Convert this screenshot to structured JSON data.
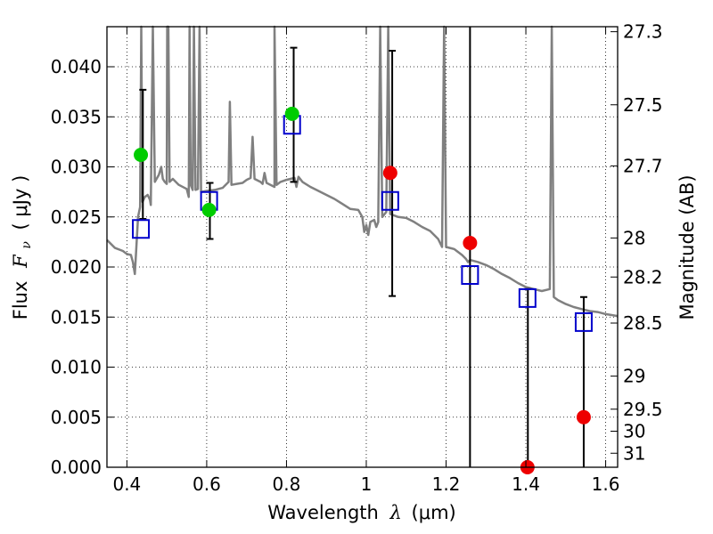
{
  "chart_data": {
    "type": "scatter",
    "title": "",
    "xlabel": {
      "prefix": "Wavelength",
      "symbol": "λ",
      "unit": "(μm)"
    },
    "ylabel": {
      "prefix": "Flux",
      "symbol": "F",
      "subscript": "ν",
      "unit": "( μJy )"
    },
    "y2label": "Magnitude (AB)",
    "xlim": [
      0.35,
      1.63
    ],
    "ylim": [
      0.0,
      0.044
    ],
    "x_ticks": [
      0.4,
      0.6,
      0.8,
      1.0,
      1.2,
      1.4,
      1.6
    ],
    "x_tick_labels": [
      "0.4",
      "0.6",
      "0.8",
      "1",
      "1.2",
      "1.4",
      "1.6"
    ],
    "y_ticks": [
      0.0,
      0.005,
      0.01,
      0.015,
      0.02,
      0.025,
      0.03,
      0.035,
      0.04
    ],
    "y_tick_labels": [
      "0.000",
      "0.005",
      "0.010",
      "0.015",
      "0.020",
      "0.025",
      "0.030",
      "0.035",
      "0.040"
    ],
    "y2_ticks": [
      {
        "label": "27.3",
        "flux": 0.0435
      },
      {
        "label": "27.5",
        "flux": 0.0362
      },
      {
        "label": "27.7",
        "flux": 0.0301
      },
      {
        "label": "28",
        "flux": 0.0229
      },
      {
        "label": "28.2",
        "flux": 0.019
      },
      {
        "label": "28.5",
        "flux": 0.0144
      },
      {
        "label": "29",
        "flux": 0.0091
      },
      {
        "label": "29.5",
        "flux": 0.0058
      },
      {
        "label": "30",
        "flux": 0.0036
      },
      {
        "label": "31",
        "flux": 0.0014
      }
    ],
    "grid": true,
    "colors": {
      "model": "#808080",
      "box": "#0000cc",
      "green": "#00cc00",
      "red": "#ee0000",
      "errorbar": "#000000"
    },
    "series": [
      {
        "marker": "square",
        "color": "#0000cc",
        "points": [
          {
            "x": 0.435,
            "y": 0.0238
          },
          {
            "x": 0.606,
            "y": 0.0266
          },
          {
            "x": 0.814,
            "y": 0.0342
          },
          {
            "x": 1.06,
            "y": 0.0266
          },
          {
            "x": 1.26,
            "y": 0.0192
          },
          {
            "x": 1.404,
            "y": 0.0169
          },
          {
            "x": 1.545,
            "y": 0.0145
          }
        ]
      },
      {
        "marker": "circle",
        "color": "#00cc00",
        "points": [
          {
            "x": 0.435,
            "y": 0.0312
          },
          {
            "x": 0.606,
            "y": 0.0257
          },
          {
            "x": 0.814,
            "y": 0.0353
          }
        ]
      },
      {
        "marker": "circle",
        "color": "#ee0000",
        "points": [
          {
            "x": 1.06,
            "y": 0.0294
          },
          {
            "x": 1.26,
            "y": 0.0224
          },
          {
            "x": 1.404,
            "y": 0.0
          },
          {
            "x": 1.545,
            "y": 0.005
          }
        ]
      }
    ],
    "error_bars": [
      {
        "x": 0.44,
        "lo": 0.0248,
        "hi": 0.0377
      },
      {
        "x": 0.608,
        "lo": 0.0228,
        "hi": 0.0284
      },
      {
        "x": 0.818,
        "lo": 0.0285,
        "hi": 0.0419
      },
      {
        "x": 1.065,
        "lo": 0.0171,
        "hi": 0.0416
      },
      {
        "x": 1.26,
        "lo": 0.0,
        "hi": 0.0442
      },
      {
        "x": 1.405,
        "lo": 0.0,
        "hi": 0.0178
      },
      {
        "x": 1.545,
        "lo": 0.0,
        "hi": 0.017
      }
    ],
    "model_spectrum": [
      [
        0.35,
        0.0227
      ],
      [
        0.37,
        0.0219
      ],
      [
        0.39,
        0.0216
      ],
      [
        0.4,
        0.0213
      ],
      [
        0.41,
        0.0212
      ],
      [
        0.415,
        0.0205
      ],
      [
        0.42,
        0.0193
      ],
      [
        0.423,
        0.0215
      ],
      [
        0.428,
        0.025
      ],
      [
        0.433,
        0.026
      ],
      [
        0.436,
        0.044
      ],
      [
        0.439,
        0.0265
      ],
      [
        0.445,
        0.027
      ],
      [
        0.452,
        0.0272
      ],
      [
        0.458,
        0.0267
      ],
      [
        0.46,
        0.0262
      ],
      [
        0.465,
        0.044
      ],
      [
        0.47,
        0.0285
      ],
      [
        0.48,
        0.0292
      ],
      [
        0.486,
        0.03
      ],
      [
        0.49,
        0.0288
      ],
      [
        0.495,
        0.0285
      ],
      [
        0.5,
        0.0283
      ],
      [
        0.501,
        0.044
      ],
      [
        0.504,
        0.044
      ],
      [
        0.507,
        0.0285
      ],
      [
        0.515,
        0.0288
      ],
      [
        0.53,
        0.0282
      ],
      [
        0.55,
        0.0278
      ],
      [
        0.555,
        0.027
      ],
      [
        0.557,
        0.044
      ],
      [
        0.56,
        0.0282
      ],
      [
        0.565,
        0.0277
      ],
      [
        0.568,
        0.044
      ],
      [
        0.572,
        0.0277
      ],
      [
        0.578,
        0.0278
      ],
      [
        0.582,
        0.044
      ],
      [
        0.586,
        0.0275
      ],
      [
        0.6,
        0.0276
      ],
      [
        0.62,
        0.0277
      ],
      [
        0.64,
        0.0279
      ],
      [
        0.655,
        0.0285
      ],
      [
        0.658,
        0.0365
      ],
      [
        0.662,
        0.0282
      ],
      [
        0.675,
        0.0283
      ],
      [
        0.69,
        0.0284
      ],
      [
        0.7,
        0.0287
      ],
      [
        0.71,
        0.0289
      ],
      [
        0.715,
        0.033
      ],
      [
        0.72,
        0.0288
      ],
      [
        0.735,
        0.0285
      ],
      [
        0.74,
        0.0283
      ],
      [
        0.745,
        0.0294
      ],
      [
        0.75,
        0.0284
      ],
      [
        0.76,
        0.0282
      ],
      [
        0.77,
        0.028
      ],
      [
        0.77,
        0.044
      ],
      [
        0.775,
        0.0282
      ],
      [
        0.785,
        0.0285
      ],
      [
        0.8,
        0.0287
      ],
      [
        0.82,
        0.0289
      ],
      [
        0.825,
        0.028
      ],
      [
        0.83,
        0.029
      ],
      [
        0.84,
        0.0285
      ],
      [
        0.86,
        0.028
      ],
      [
        0.88,
        0.0276
      ],
      [
        0.9,
        0.0272
      ],
      [
        0.92,
        0.0268
      ],
      [
        0.94,
        0.0263
      ],
      [
        0.96,
        0.0258
      ],
      [
        0.98,
        0.0257
      ],
      [
        0.99,
        0.025
      ],
      [
        0.995,
        0.0235
      ],
      [
        1.0,
        0.0242
      ],
      [
        1.005,
        0.0232
      ],
      [
        1.01,
        0.0245
      ],
      [
        1.02,
        0.0247
      ],
      [
        1.025,
        0.024
      ],
      [
        1.03,
        0.0245
      ],
      [
        1.035,
        0.044
      ],
      [
        1.04,
        0.025
      ],
      [
        1.05,
        0.0255
      ],
      [
        1.055,
        0.044
      ],
      [
        1.06,
        0.0253
      ],
      [
        1.08,
        0.025
      ],
      [
        1.1,
        0.0249
      ],
      [
        1.12,
        0.0245
      ],
      [
        1.14,
        0.024
      ],
      [
        1.16,
        0.0236
      ],
      [
        1.18,
        0.0228
      ],
      [
        1.19,
        0.022
      ],
      [
        1.195,
        0.044
      ],
      [
        1.2,
        0.022
      ],
      [
        1.22,
        0.0218
      ],
      [
        1.24,
        0.0212
      ],
      [
        1.25,
        0.0208
      ],
      [
        1.255,
        0.0205
      ],
      [
        1.26,
        0.0207
      ],
      [
        1.28,
        0.0205
      ],
      [
        1.3,
        0.0202
      ],
      [
        1.32,
        0.0198
      ],
      [
        1.34,
        0.0193
      ],
      [
        1.36,
        0.0189
      ],
      [
        1.38,
        0.0184
      ],
      [
        1.4,
        0.018
      ],
      [
        1.42,
        0.0178
      ],
      [
        1.44,
        0.0176
      ],
      [
        1.46,
        0.0178
      ],
      [
        1.465,
        0.044
      ],
      [
        1.47,
        0.017
      ],
      [
        1.48,
        0.0167
      ],
      [
        1.5,
        0.0163
      ],
      [
        1.52,
        0.016
      ],
      [
        1.54,
        0.0158
      ],
      [
        1.56,
        0.0156
      ],
      [
        1.58,
        0.0155
      ],
      [
        1.6,
        0.0153
      ],
      [
        1.63,
        0.0151
      ]
    ]
  }
}
